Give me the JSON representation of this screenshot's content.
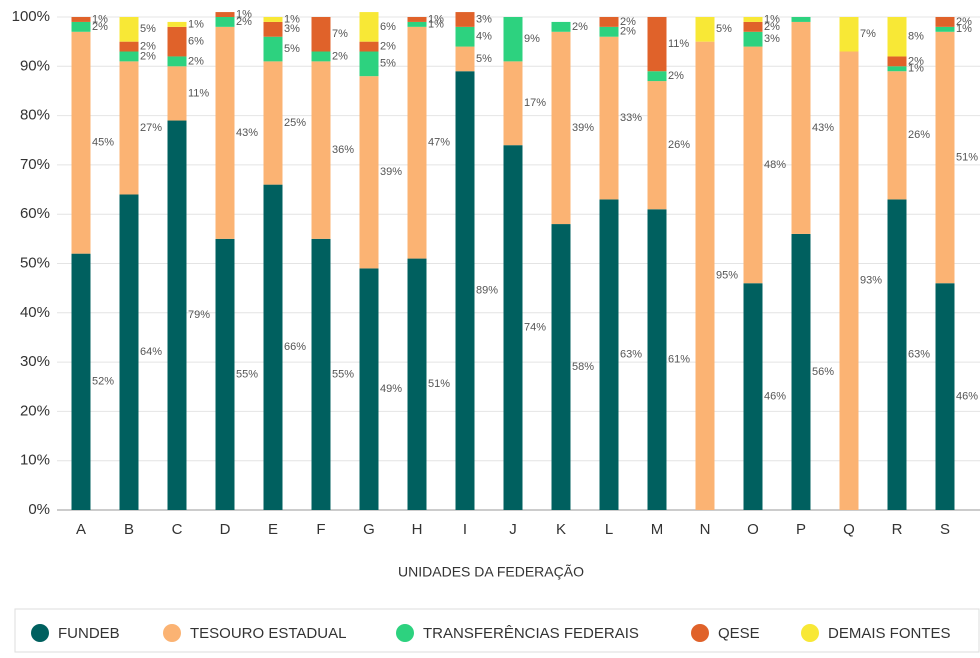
{
  "chart_data": {
    "type": "stacked_bar",
    "x_label": "UNIDADES DA FEDERAÇÃO",
    "categories": [
      "A",
      "B",
      "C",
      "D",
      "E",
      "F",
      "G",
      "H",
      "I",
      "J",
      "K",
      "L",
      "M",
      "N",
      "O",
      "P",
      "Q",
      "R",
      "S"
    ],
    "ylim": [
      0,
      100
    ],
    "yticks": [
      {
        "value": 0,
        "label": "0%"
      },
      {
        "value": 10,
        "label": "10%"
      },
      {
        "value": 20,
        "label": "20%"
      },
      {
        "value": 30,
        "label": "30%"
      },
      {
        "value": 40,
        "label": "40%"
      },
      {
        "value": 50,
        "label": "50%"
      },
      {
        "value": 60,
        "label": "60%"
      },
      {
        "value": 70,
        "label": "70%"
      },
      {
        "value": 80,
        "label": "80%"
      },
      {
        "value": 90,
        "label": "90%"
      },
      {
        "value": 100,
        "label": "100%"
      }
    ],
    "grid": true,
    "legend": "bottom",
    "series": [
      {
        "name": "FUNDEB",
        "color": "#00605f",
        "values": [
          52,
          64,
          79,
          55,
          66,
          55,
          49,
          51,
          89,
          74,
          58,
          63,
          61,
          0,
          46,
          56,
          0,
          63,
          46
        ],
        "value_labels": [
          "52%",
          "64%",
          "79%",
          "55%",
          "66%",
          "55%",
          "49%",
          "51%",
          "89%",
          "74%",
          "58%",
          "63%",
          "61%",
          null,
          "46%",
          "56%",
          null,
          "63%",
          "46%"
        ]
      },
      {
        "name": "TESOURO ESTADUAL",
        "color": "#fbb373",
        "values": [
          45,
          27,
          11,
          43,
          25,
          36,
          39,
          47,
          5,
          17,
          39,
          33,
          26,
          95,
          48,
          43,
          93,
          26,
          51
        ],
        "value_labels": [
          "45%",
          "27%",
          "11%",
          "43%",
          "25%",
          "36%",
          "39%",
          "47%",
          "5%",
          "17%",
          "39%",
          "33%",
          "26%",
          "95%",
          "48%",
          "43%",
          "93%",
          "26%",
          "51%"
        ]
      },
      {
        "name": "TRANSFERÊNCIAS FEDERAIS",
        "color": "#2dd27f",
        "values": [
          2,
          2,
          2,
          2,
          5,
          2,
          5,
          1,
          4,
          9,
          2,
          2,
          2,
          0,
          3,
          1,
          0,
          1,
          1
        ],
        "value_labels": [
          "2%",
          "2%",
          "2%",
          "2%",
          "5%",
          "2%",
          "5%",
          "1%",
          "4%",
          "9%",
          "2%",
          "2%",
          "2%",
          null,
          "3%",
          null,
          null,
          "1%",
          "1%"
        ]
      },
      {
        "name": "QESE",
        "color": "#e0622a",
        "values": [
          1,
          2,
          6,
          1,
          3,
          7,
          2,
          1,
          3,
          0,
          0,
          2,
          11,
          0,
          2,
          0,
          0,
          2,
          2
        ],
        "value_labels": [
          "1%",
          "2%",
          "6%",
          "1%",
          "3%",
          "7%",
          "2%",
          "1%",
          "3%",
          null,
          null,
          "2%",
          "11%",
          null,
          "2%",
          null,
          null,
          "2%",
          "2%"
        ]
      },
      {
        "name": "DEMAIS FONTES",
        "color": "#f8e836",
        "values": [
          0,
          5,
          1,
          0,
          1,
          0,
          6,
          0,
          0,
          0,
          0,
          0,
          0,
          5,
          1,
          0,
          7,
          8,
          0
        ],
        "value_labels": [
          null,
          "5%",
          "1%",
          null,
          "1%",
          null,
          "6%",
          null,
          null,
          null,
          null,
          null,
          null,
          "5%",
          "1%",
          null,
          "7%",
          "8%",
          null
        ]
      }
    ]
  }
}
